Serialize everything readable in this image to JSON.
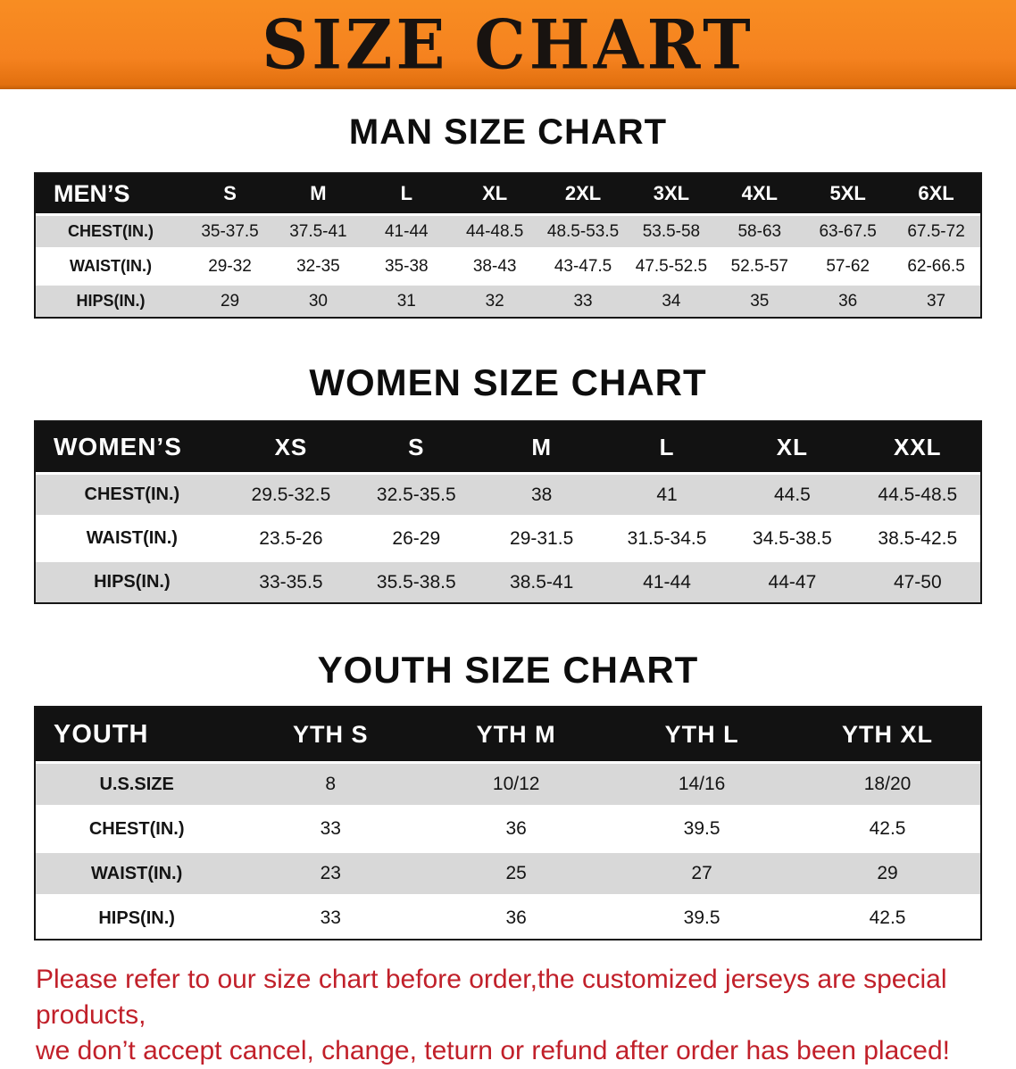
{
  "banner": {
    "title": "SIZE CHART"
  },
  "colors": {
    "banner_orange": "#f5821f",
    "table_header_black": "#121212",
    "row_stripe_gray": "#d8d8d8",
    "footer_red": "#c1202a"
  },
  "chart_data": [
    {
      "type": "table",
      "title": "MAN SIZE CHART",
      "columns": [
        "MEN’S",
        "S",
        "M",
        "L",
        "XL",
        "2XL",
        "3XL",
        "4XL",
        "5XL",
        "6XL"
      ],
      "rows": [
        [
          "CHEST(IN.)",
          "35-37.5",
          "37.5-41",
          "41-44",
          "44-48.5",
          "48.5-53.5",
          "53.5-58",
          "58-63",
          "63-67.5",
          "67.5-72"
        ],
        [
          "WAIST(IN.)",
          "29-32",
          "32-35",
          "35-38",
          "38-43",
          "43-47.5",
          "47.5-52.5",
          "52.5-57",
          "57-62",
          "62-66.5"
        ],
        [
          "HIPS(IN.)",
          "29",
          "30",
          "31",
          "32",
          "33",
          "34",
          "35",
          "36",
          "37"
        ]
      ]
    },
    {
      "type": "table",
      "title": "WOMEN SIZE CHART",
      "columns": [
        "WOMEN’S",
        "XS",
        "S",
        "M",
        "L",
        "XL",
        "XXL"
      ],
      "rows": [
        [
          "CHEST(IN.)",
          "29.5-32.5",
          "32.5-35.5",
          "38",
          "41",
          "44.5",
          "44.5-48.5"
        ],
        [
          "WAIST(IN.)",
          "23.5-26",
          "26-29",
          "29-31.5",
          "31.5-34.5",
          "34.5-38.5",
          "38.5-42.5"
        ],
        [
          "HIPS(IN.)",
          "33-35.5",
          "35.5-38.5",
          "38.5-41",
          "41-44",
          "44-47",
          "47-50"
        ]
      ]
    },
    {
      "type": "table",
      "title": "YOUTH SIZE CHART",
      "columns": [
        "YOUTH",
        "YTH S",
        "YTH M",
        "YTH L",
        "YTH XL"
      ],
      "rows": [
        [
          "U.S.SIZE",
          "8",
          "10/12",
          "14/16",
          "18/20"
        ],
        [
          "CHEST(IN.)",
          "33",
          "36",
          "39.5",
          "42.5"
        ],
        [
          "WAIST(IN.)",
          "23",
          "25",
          "27",
          "29"
        ],
        [
          "HIPS(IN.)",
          "33",
          "36",
          "39.5",
          "42.5"
        ]
      ]
    }
  ],
  "footer": {
    "line1": "Please refer to our size chart before order,the customized jerseys are special products,",
    "line2": "we don’t accept cancel, change, teturn or refund after order has been placed!"
  }
}
